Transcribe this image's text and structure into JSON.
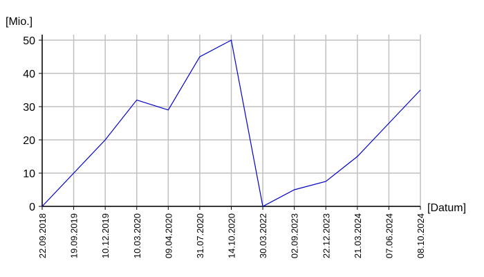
{
  "chart_data": {
    "type": "line",
    "y_label": "[Mio.]",
    "x_label": "[Datum]",
    "categories": [
      "22.09.2018",
      "19.09.2019",
      "10.12.2019",
      "10.03.2020",
      "09.04.2020",
      "31.07.2020",
      "14.10.2020",
      "30.03.2022",
      "02.09.2023",
      "22.12.2023",
      "21.03.2024",
      "07.06.2024",
      "08.10.2024"
    ],
    "values": [
      0,
      10,
      20,
      32,
      29,
      45,
      50,
      0,
      5,
      7.5,
      15,
      25,
      35
    ],
    "color": "#0000cc",
    "ylim": [
      0,
      50
    ],
    "yticks": [
      0,
      10,
      20,
      30,
      40,
      50
    ],
    "grid": true
  }
}
